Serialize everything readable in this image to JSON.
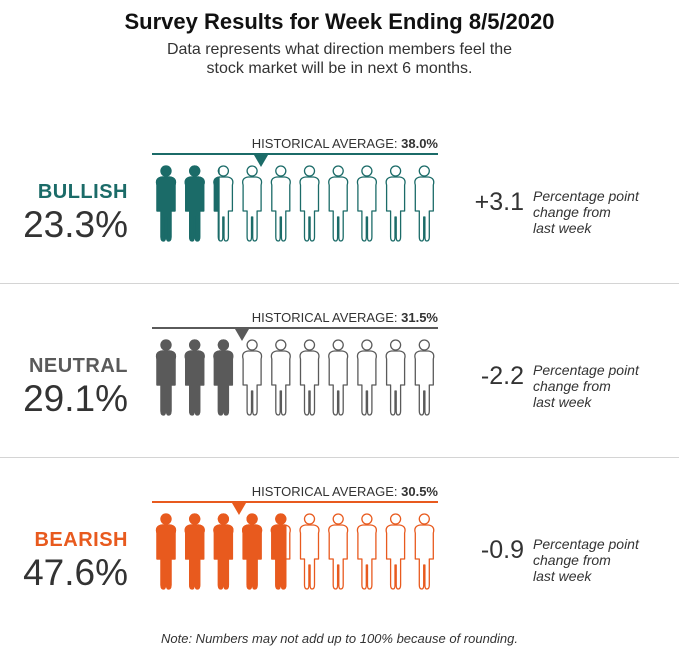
{
  "title": "Survey Results for Week Ending 8/5/2020",
  "subtitle_line1": "Data represents what direction members feel the",
  "subtitle_line2": "stock market will be in next 6 months.",
  "footer": "Note: Numbers may not add up to 100% because of rounding.",
  "chart_data": {
    "type": "pictograph",
    "icons_per_row": 10,
    "icon_unit_percent": 10,
    "series": [
      {
        "name": "BULLISH",
        "value_label": "23.3%",
        "value": 23.3,
        "historical_label": "HISTORICAL AVERAGE:",
        "historical_value_label": "38.0%",
        "historical_value": 38.0,
        "change_label": "+3.1",
        "change": 3.1,
        "change_note": [
          "Percentage point",
          "change from",
          "last week"
        ],
        "color": "#1b6b68"
      },
      {
        "name": "NEUTRAL",
        "value_label": "29.1%",
        "value": 29.1,
        "historical_label": "HISTORICAL AVERAGE:",
        "historical_value_label": "31.5%",
        "historical_value": 31.5,
        "change_label": "-2.2",
        "change": -2.2,
        "change_note": [
          "Percentage point",
          "change from",
          "last week"
        ],
        "color": "#5a5a5a"
      },
      {
        "name": "BEARISH",
        "value_label": "47.6%",
        "value": 47.6,
        "historical_label": "HISTORICAL AVERAGE:",
        "historical_value_label": "30.5%",
        "historical_value": 30.5,
        "change_label": "-0.9",
        "change": -0.9,
        "change_note": [
          "Percentage point",
          "change from",
          "last week"
        ],
        "color": "#e85a1e"
      }
    ]
  }
}
